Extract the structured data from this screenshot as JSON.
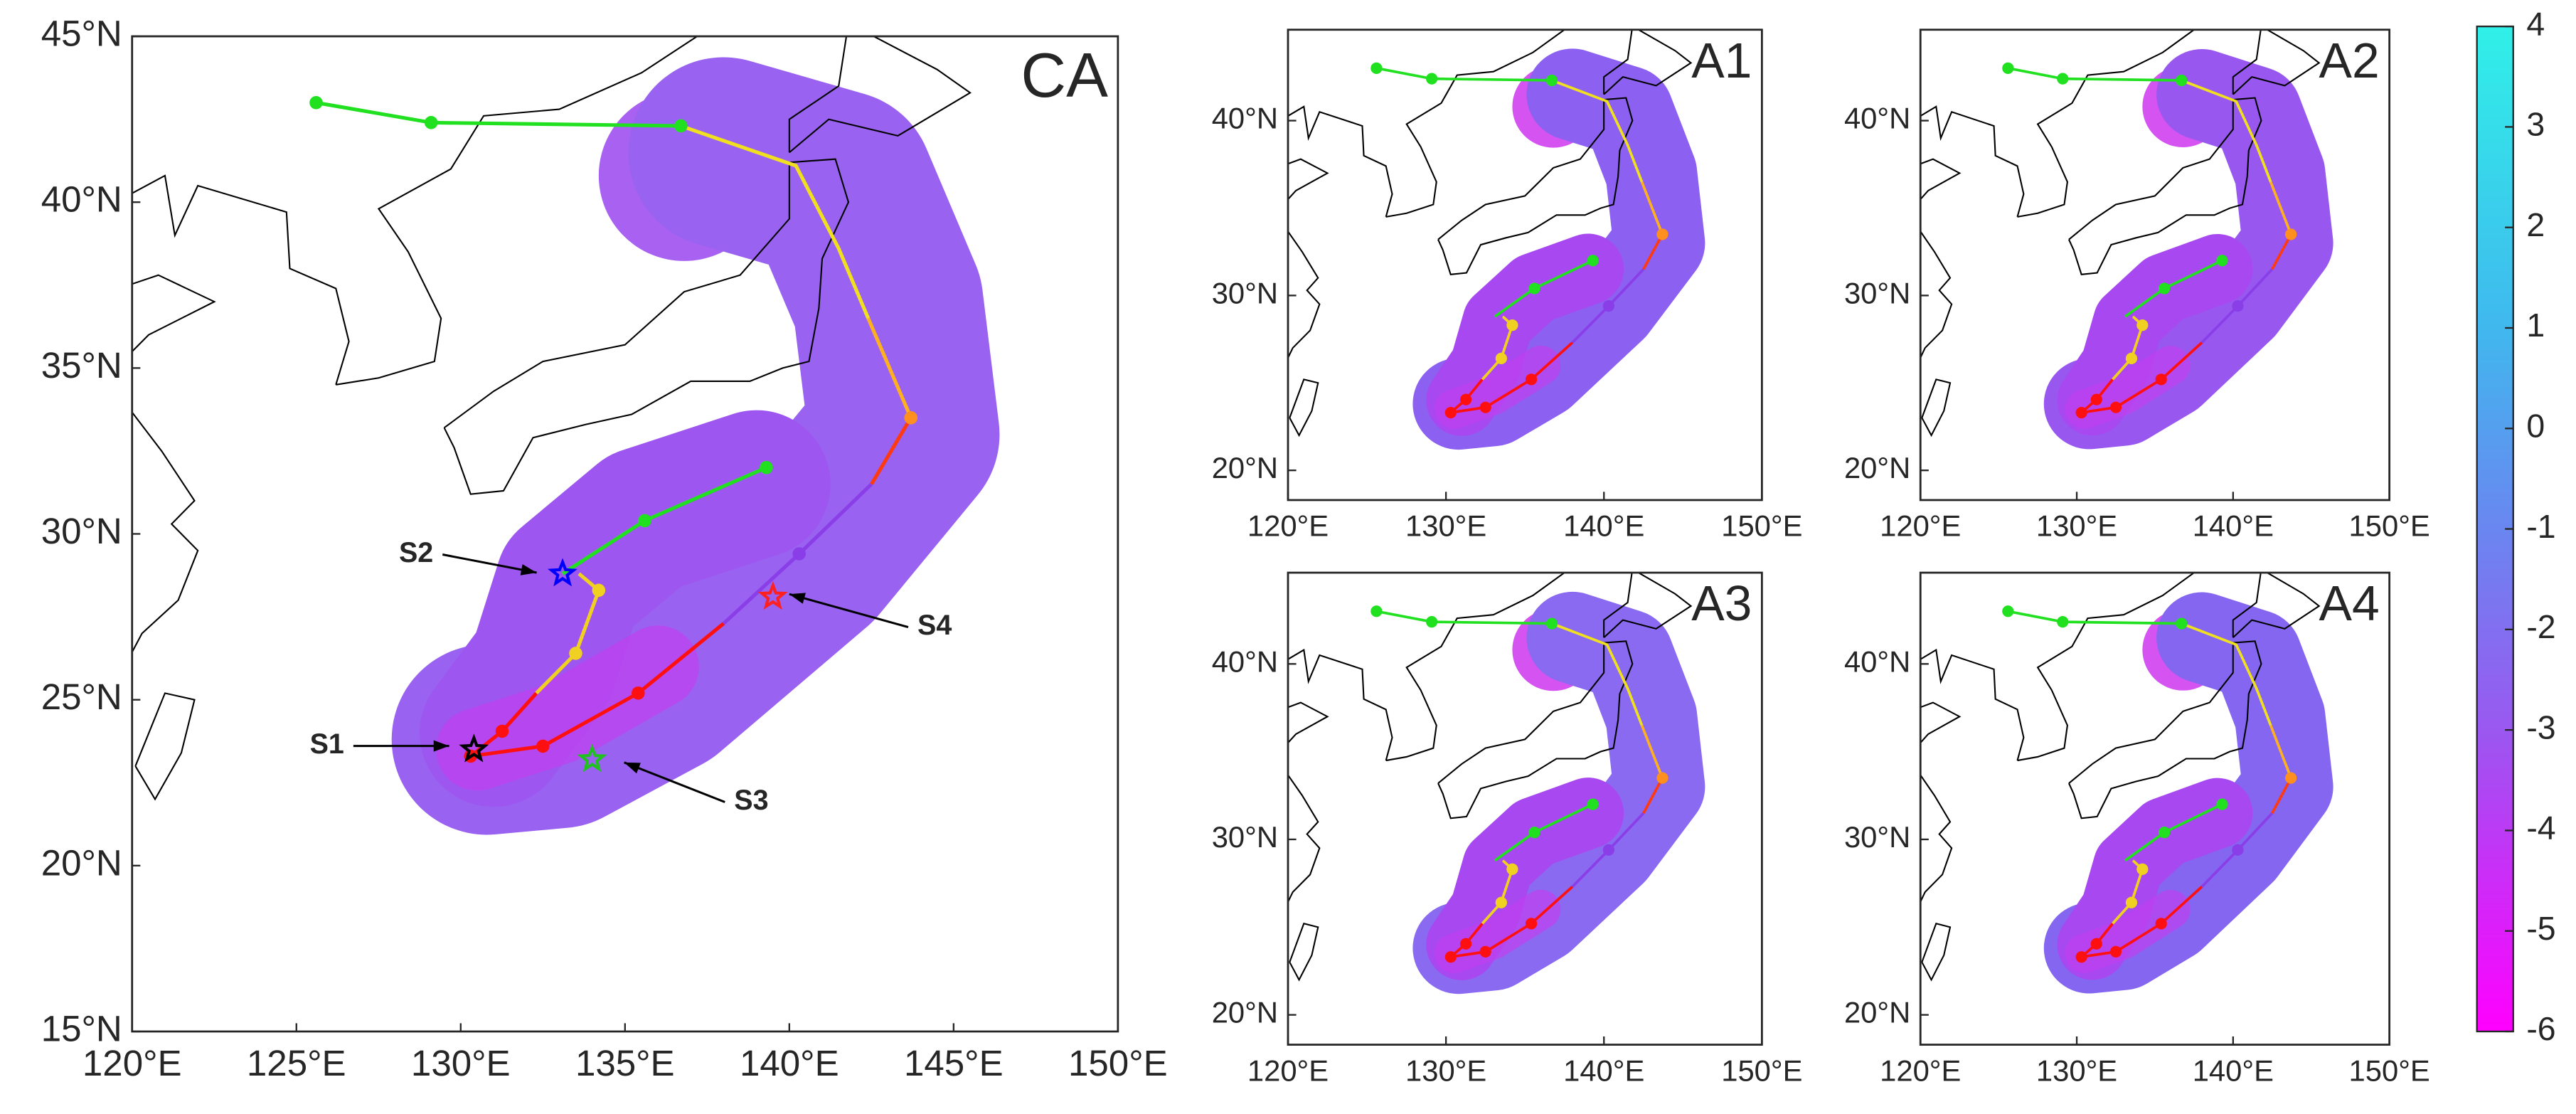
{
  "panels": [
    {
      "label": "CA",
      "xlim": [
        120,
        150
      ],
      "ylim": [
        15,
        45
      ],
      "xticks": [
        {
          "value": 120,
          "label": "120°E"
        },
        {
          "value": 125,
          "label": "125°E"
        },
        {
          "value": 130,
          "label": "130°E"
        },
        {
          "value": 135,
          "label": "135°E"
        },
        {
          "value": 140,
          "label": "140°E"
        },
        {
          "value": 145,
          "label": "145°E"
        },
        {
          "value": 150,
          "label": "150°E"
        }
      ],
      "yticks": [
        {
          "value": 15,
          "label": "15°N"
        },
        {
          "value": 20,
          "label": "20°N"
        },
        {
          "value": 25,
          "label": "25°N"
        },
        {
          "value": 30,
          "label": "30°N"
        },
        {
          "value": 35,
          "label": "35°N"
        },
        {
          "value": 40,
          "label": "40°N"
        },
        {
          "value": 45,
          "label": "45°N"
        }
      ],
      "annotations": [
        "S1",
        "S2",
        "S3",
        "S4"
      ]
    },
    {
      "label": "A1",
      "xlim": [
        120,
        150
      ],
      "ylim": [
        18.3,
        45.2
      ],
      "xticks": [
        {
          "value": 120,
          "label": "120°E"
        },
        {
          "value": 130,
          "label": "130°E"
        },
        {
          "value": 140,
          "label": "140°E"
        },
        {
          "value": 150,
          "label": "150°E"
        }
      ],
      "yticks": [
        {
          "value": 20,
          "label": "20°N"
        },
        {
          "value": 30,
          "label": "30°N"
        },
        {
          "value": 40,
          "label": "40°N"
        }
      ]
    },
    {
      "label": "A2",
      "xlim": [
        120,
        150
      ],
      "ylim": [
        18.3,
        45.2
      ],
      "xticks": [
        {
          "value": 120,
          "label": "120°E"
        },
        {
          "value": 130,
          "label": "130°E"
        },
        {
          "value": 140,
          "label": "140°E"
        },
        {
          "value": 150,
          "label": "150°E"
        }
      ],
      "yticks": [
        {
          "value": 20,
          "label": "20°N"
        },
        {
          "value": 30,
          "label": "30°N"
        },
        {
          "value": 40,
          "label": "40°N"
        }
      ]
    },
    {
      "label": "A3",
      "xlim": [
        120,
        150
      ],
      "ylim": [
        18.3,
        45.2
      ],
      "xticks": [
        {
          "value": 120,
          "label": "120°E"
        },
        {
          "value": 130,
          "label": "130°E"
        },
        {
          "value": 140,
          "label": "140°E"
        },
        {
          "value": 150,
          "label": "150°E"
        }
      ],
      "yticks": [
        {
          "value": 20,
          "label": "20°N"
        },
        {
          "value": 30,
          "label": "30°N"
        },
        {
          "value": 40,
          "label": "40°N"
        }
      ]
    },
    {
      "label": "A4",
      "xlim": [
        120,
        150
      ],
      "ylim": [
        18.3,
        45.2
      ],
      "xticks": [
        {
          "value": 120,
          "label": "120°E"
        },
        {
          "value": 130,
          "label": "130°E"
        },
        {
          "value": 140,
          "label": "140°E"
        },
        {
          "value": 150,
          "label": "150°E"
        }
      ],
      "yticks": [
        {
          "value": 20,
          "label": "20°N"
        },
        {
          "value": 30,
          "label": "30°N"
        },
        {
          "value": 40,
          "label": "40°N"
        }
      ]
    }
  ],
  "colorbar": {
    "clim": [
      -6,
      4
    ],
    "ticks": [
      4,
      3,
      2,
      1,
      0,
      -1,
      -2,
      -3,
      -4,
      -5,
      -6
    ]
  }
}
